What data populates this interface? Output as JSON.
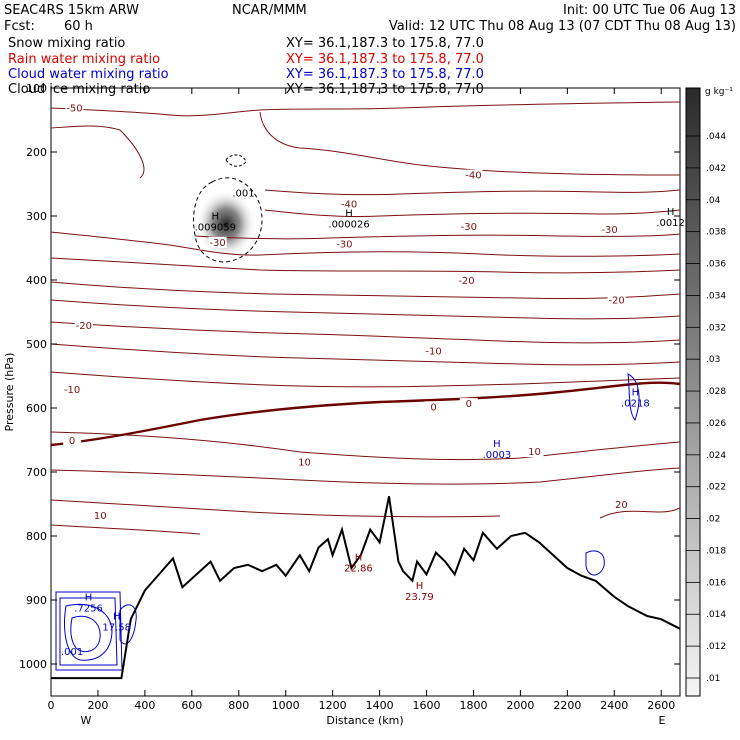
{
  "header": {
    "model": "SEAC4RS 15km ARW",
    "org": "NCAR/MMM",
    "init": "Init: 00 UTC Tue 06 Aug 13",
    "fcst_label": "Fcst:",
    "fcst_value": "60 h",
    "valid": "Valid: 12 UTC Thu 08 Aug 13 (07 CDT Thu 08 Aug 13)",
    "fields": [
      {
        "name": "Snow mixing ratio",
        "xy": "XY=  36.1,187.3 to 175.8, 77.0",
        "color": "#000000"
      },
      {
        "name": "Rain water mixing ratio",
        "xy": "XY=  36.1,187.3 to 175.8, 77.0",
        "color": "#dd0000"
      },
      {
        "name": "Cloud water mixing ratio",
        "xy": "XY=  36.1,187.3 to 175.8, 77.0",
        "color": "#0000cc"
      },
      {
        "name": "Cloud ice mixing ratio",
        "xy": "XY=  36.1,187.3 to 175.8, 77.0",
        "color": "#000000"
      }
    ]
  },
  "chart_data": {
    "type": "cross-section",
    "xlabel": "Distance (km)",
    "ylabel": "Pressure (hPa)",
    "xlim": [
      0,
      2680
    ],
    "ylim": [
      1050,
      100
    ],
    "x_ticks": [
      0,
      200,
      400,
      600,
      800,
      1000,
      1200,
      1400,
      1600,
      1800,
      2000,
      2200,
      2400,
      2600
    ],
    "y_ticks": [
      100,
      200,
      300,
      400,
      500,
      600,
      700,
      800,
      900,
      1000
    ],
    "x_end_labels": [
      "W",
      "E"
    ],
    "colorbar": {
      "unit": "g kg⁻¹",
      "ticks": [
        ".044",
        ".042",
        ".04",
        ".038",
        ".036",
        ".034",
        ".032",
        ".03",
        ".028",
        ".026",
        ".024",
        ".022",
        ".02",
        ".018",
        ".016",
        ".014",
        ".012",
        ".01"
      ]
    },
    "temperature_contours": [
      {
        "label": "-50",
        "p": 135,
        "x": 100
      },
      {
        "label": "-40",
        "p": 285,
        "x": 1270
      },
      {
        "label": "-40",
        "p": 240,
        "x": 1800
      },
      {
        "label": "-30",
        "p": 345,
        "x": 710
      },
      {
        "label": "-30",
        "p": 348,
        "x": 1250
      },
      {
        "label": "-30",
        "p": 320,
        "x": 1780
      },
      {
        "label": "-30",
        "p": 325,
        "x": 2380
      },
      {
        "label": "-20",
        "p": 405,
        "x": 1770
      },
      {
        "label": "-20",
        "p": 435,
        "x": 2410
      },
      {
        "label": "-20",
        "p": 475,
        "x": 140
      },
      {
        "label": "-10",
        "p": 515,
        "x": 1630
      },
      {
        "label": "-10",
        "p": 575,
        "x": 90
      },
      {
        "label": "0",
        "p": 602,
        "x": 1630
      },
      {
        "label": "0",
        "p": 597,
        "x": 1780
      },
      {
        "label": "0",
        "p": 655,
        "x": 90
      },
      {
        "label": "10",
        "p": 688,
        "x": 1080
      },
      {
        "label": "10",
        "p": 672,
        "x": 2060
      },
      {
        "label": "10",
        "p": 772,
        "x": 210
      },
      {
        "label": "20",
        "p": 755,
        "x": 2430
      }
    ],
    "maxima_labels": [
      {
        "marker": "H",
        "value": ".009059",
        "p": 315,
        "x": 700,
        "color": "#000000"
      },
      {
        "marker": "H",
        "value": ".000026",
        "p": 310,
        "x": 1270,
        "color": "#000000"
      },
      {
        "marker": "H",
        "value": ".0012",
        "p": 308,
        "x": 2640,
        "color": "#000000"
      },
      {
        "marker": "",
        "value": ".001",
        "p": 262,
        "x": 820,
        "color": "#000000"
      },
      {
        "marker": "H",
        "value": ".0218",
        "p": 590,
        "x": 2490,
        "color": "#0000cc"
      },
      {
        "marker": "H",
        "value": ".0003",
        "p": 670,
        "x": 1900,
        "color": "#0000cc"
      },
      {
        "marker": "H",
        "value": "22.86",
        "p": 848,
        "x": 1310,
        "color": "#880000"
      },
      {
        "marker": "H",
        "value": "23.79",
        "p": 892,
        "x": 1570,
        "color": "#880000"
      },
      {
        "marker": "H",
        "value": ".7256",
        "p": 910,
        "x": 160,
        "color": "#0000cc"
      },
      {
        "marker": "H",
        "value": "17.58",
        "p": 940,
        "x": 280,
        "color": "#0000cc"
      },
      {
        "marker": "",
        "value": ".001",
        "p": 978,
        "x": 90,
        "color": "#0000cc"
      }
    ],
    "terrain_pressure": [
      [
        0,
        1022
      ],
      [
        120,
        1022
      ],
      [
        300,
        1022
      ],
      [
        340,
        930
      ],
      [
        400,
        885
      ],
      [
        460,
        860
      ],
      [
        520,
        835
      ],
      [
        560,
        880
      ],
      [
        620,
        860
      ],
      [
        680,
        840
      ],
      [
        720,
        870
      ],
      [
        780,
        850
      ],
      [
        840,
        845
      ],
      [
        900,
        855
      ],
      [
        960,
        845
      ],
      [
        1000,
        862
      ],
      [
        1060,
        830
      ],
      [
        1100,
        855
      ],
      [
        1140,
        818
      ],
      [
        1180,
        805
      ],
      [
        1200,
        830
      ],
      [
        1240,
        790
      ],
      [
        1280,
        850
      ],
      [
        1320,
        830
      ],
      [
        1360,
        790
      ],
      [
        1400,
        810
      ],
      [
        1420,
        775
      ],
      [
        1440,
        738
      ],
      [
        1480,
        840
      ],
      [
        1500,
        855
      ],
      [
        1540,
        870
      ],
      [
        1560,
        840
      ],
      [
        1600,
        860
      ],
      [
        1640,
        826
      ],
      [
        1680,
        840
      ],
      [
        1720,
        860
      ],
      [
        1760,
        820
      ],
      [
        1800,
        838
      ],
      [
        1840,
        795
      ],
      [
        1900,
        820
      ],
      [
        1960,
        800
      ],
      [
        2020,
        795
      ],
      [
        2080,
        810
      ],
      [
        2140,
        830
      ],
      [
        2200,
        850
      ],
      [
        2260,
        862
      ],
      [
        2320,
        870
      ],
      [
        2400,
        895
      ],
      [
        2460,
        910
      ],
      [
        2540,
        925
      ],
      [
        2600,
        930
      ],
      [
        2680,
        945
      ]
    ]
  }
}
